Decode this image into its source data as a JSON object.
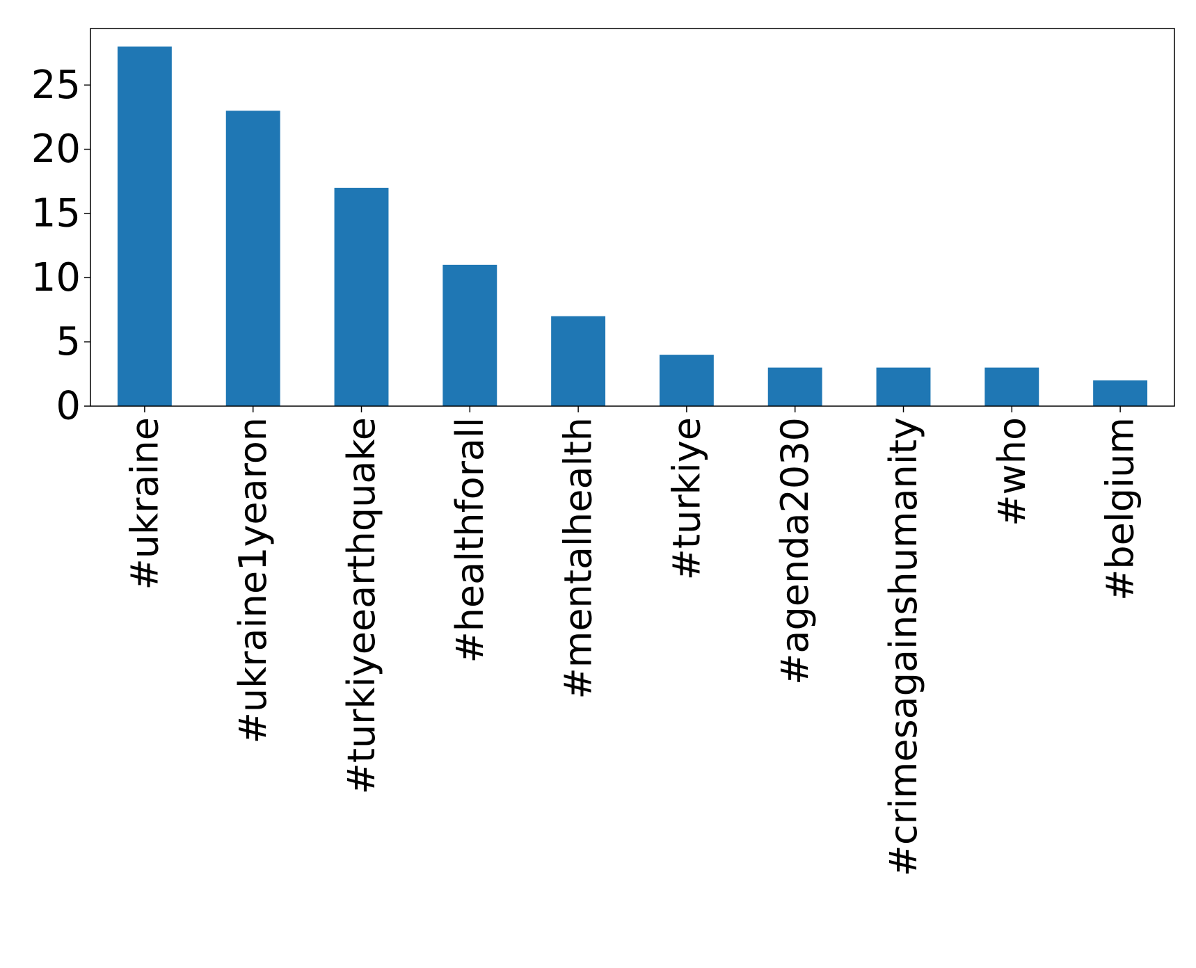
{
  "chart_data": {
    "type": "bar",
    "title": "",
    "xlabel": "",
    "ylabel": "",
    "categories": [
      "#ukraine",
      "#ukraine1yearon",
      "#turkiyeearthquake",
      "#healthforall",
      "#mentalhealth",
      "#turkiye",
      "#agenda2030",
      "#crimesagainshumanity",
      "#who",
      "#belgium"
    ],
    "values": [
      28,
      23,
      17,
      11,
      7,
      4,
      3,
      3,
      3,
      2
    ],
    "ylim": [
      0,
      29.4
    ],
    "yticks": [
      "0",
      "5",
      "10",
      "15",
      "20",
      "25"
    ],
    "grid": false,
    "legend": "none",
    "bar_color": "#1f77b4"
  }
}
